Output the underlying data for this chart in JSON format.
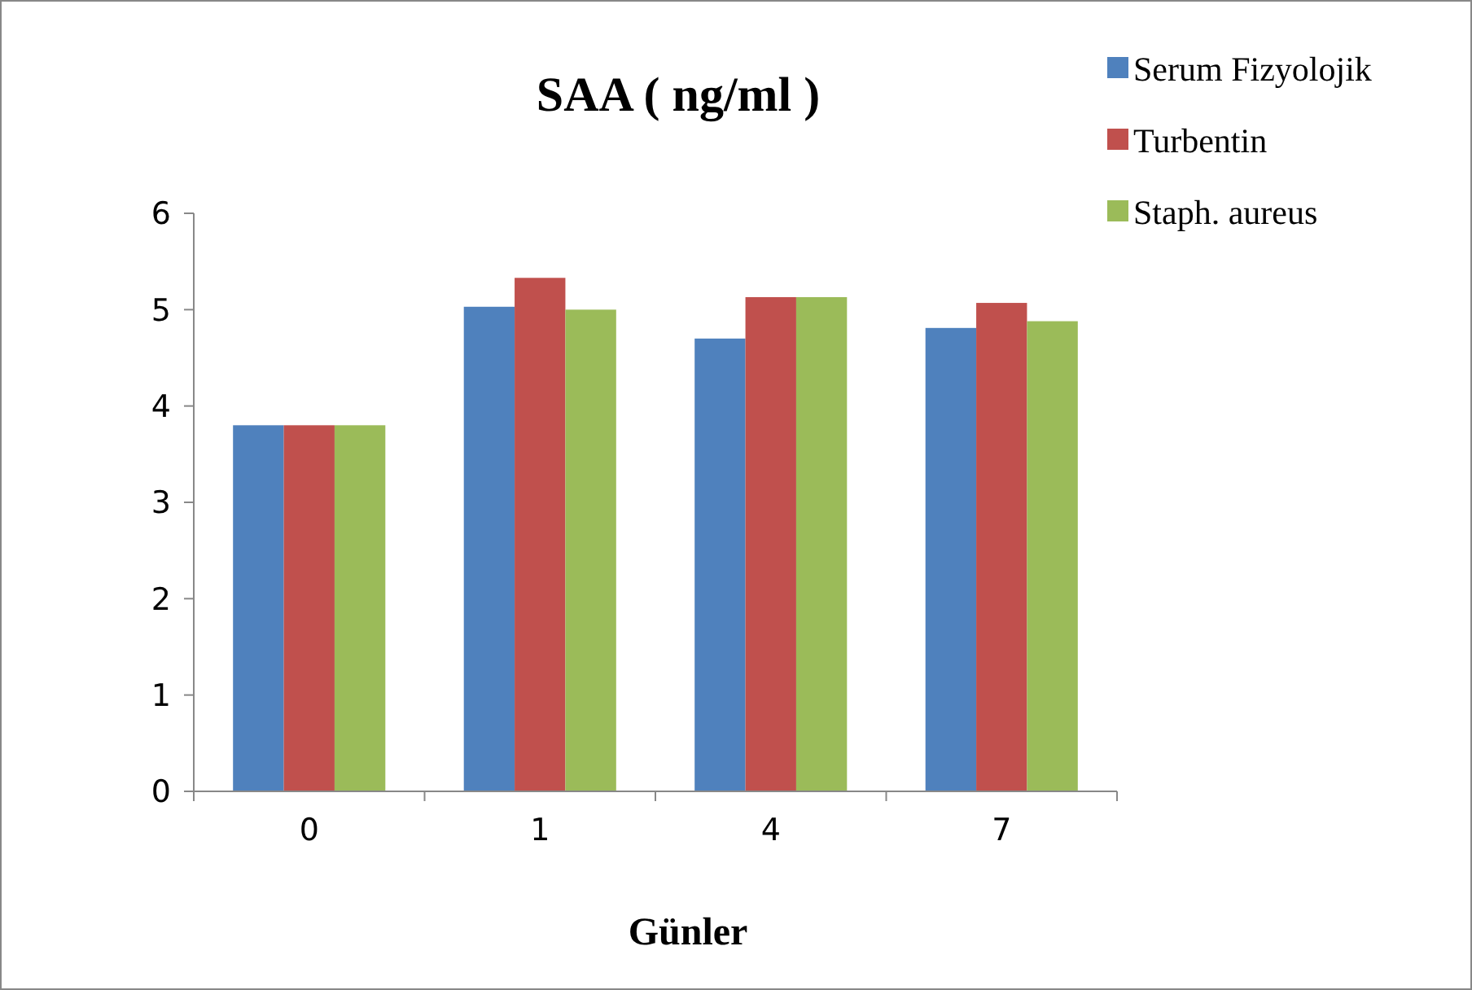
{
  "chart_data": {
    "type": "bar",
    "title": "SAA ( ng/ml )",
    "xlabel": "Günler",
    "categories": [
      "0",
      "1",
      "4",
      "7"
    ],
    "series": [
      {
        "name": "Serum Fizyolojik",
        "color": "#4f81bd",
        "values": [
          3.8,
          5.03,
          4.7,
          4.81
        ]
      },
      {
        "name": "Turbentin",
        "color": "#c0504d",
        "values": [
          3.8,
          5.33,
          5.13,
          5.07
        ]
      },
      {
        "name": "Staph. aureus",
        "color": "#9bbb59",
        "values": [
          3.8,
          5.0,
          5.13,
          4.88
        ]
      }
    ],
    "ylim": [
      0,
      6
    ],
    "yticks": [
      0,
      1,
      2,
      3,
      4,
      5,
      6
    ],
    "grid": false,
    "legend": "top right"
  }
}
